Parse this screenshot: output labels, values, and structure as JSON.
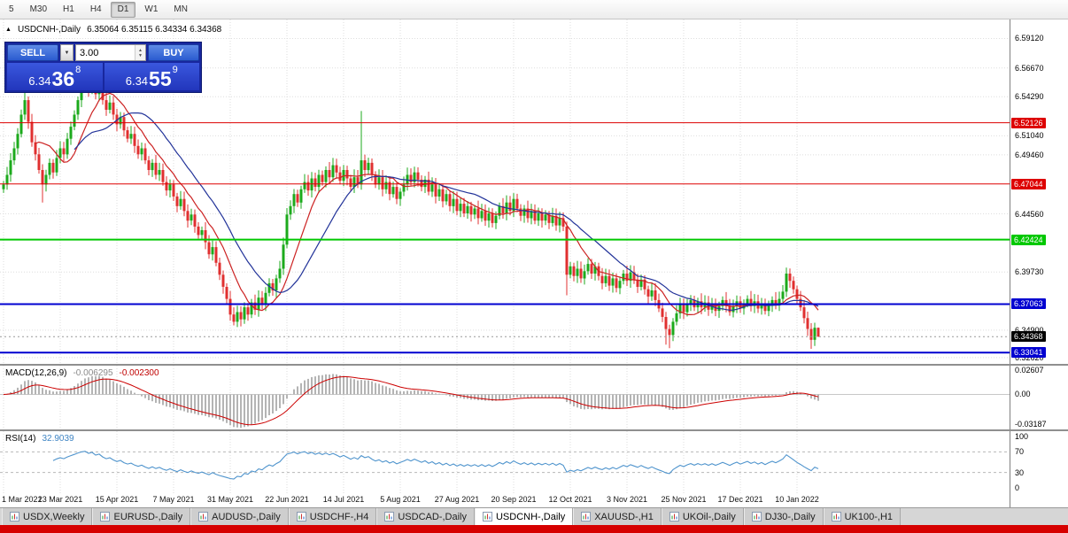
{
  "toolbar": {
    "timeframes": [
      "5",
      "M30",
      "H1",
      "H4",
      "D1",
      "W1",
      "MN"
    ],
    "active": "D1"
  },
  "icons": {
    "chart_arrow": "▲",
    "dropdown": "▼",
    "spin_up": "▲",
    "spin_down": "▼"
  },
  "chart_header": {
    "symbol_period": "USDCNH-,Daily",
    "ohlc": "6.35064 6.35115 6.34334 6.34368"
  },
  "one_click": {
    "sell_label": "SELL",
    "buy_label": "BUY",
    "volume": "3.00",
    "sell_price": {
      "base": "6.34",
      "big": "36",
      "sup": "8"
    },
    "buy_price": {
      "base": "6.34",
      "big": "55",
      "sup": "9"
    }
  },
  "indicators": {
    "macd": {
      "label": "MACD(12,26,9)",
      "value_main": "-0.006295",
      "value_signal": "-0.002300",
      "axis": [
        {
          "label": "0.02607",
          "value": 0.02607
        },
        {
          "label": "0.00",
          "value": 0
        },
        {
          "label": "-0.03187",
          "value": -0.03187
        }
      ]
    },
    "rsi": {
      "label": "RSI(14)",
      "value": "32.9039",
      "axis": [
        {
          "label": "100",
          "value": 100
        },
        {
          "label": "70",
          "value": 70
        },
        {
          "label": "30",
          "value": 30
        },
        {
          "label": "0",
          "value": 0
        }
      ]
    }
  },
  "price_axis": {
    "ticks": [
      {
        "label": "6.59120",
        "value": 6.5912
      },
      {
        "label": "6.56670",
        "value": 6.5667
      },
      {
        "label": "6.54290",
        "value": 6.5429
      },
      {
        "label": "6.51040",
        "value": 6.5104
      },
      {
        "label": "6.49460",
        "value": 6.4946
      },
      {
        "label": "6.44560",
        "value": 6.4456
      },
      {
        "label": "6.39730",
        "value": 6.3973
      },
      {
        "label": "6.34900",
        "value": 6.349
      },
      {
        "label": "6.32620",
        "value": 6.3262
      }
    ],
    "badges": [
      {
        "label": "6.52126",
        "price": 6.52126,
        "bg": "#dd0000",
        "type": "level"
      },
      {
        "label": "6.47044",
        "price": 6.47044,
        "bg": "#dd0000",
        "type": "level"
      },
      {
        "label": "6.42424",
        "price": 6.42424,
        "bg": "#00c800",
        "type": "level"
      },
      {
        "label": "6.37063",
        "price": 6.37063,
        "bg": "#0000d0",
        "type": "level"
      },
      {
        "label": "6.34368",
        "price": 6.34368,
        "bg": "#000000",
        "type": "bid"
      },
      {
        "label": "6.33041",
        "price": 6.33041,
        "bg": "#0000d0",
        "type": "level"
      }
    ]
  },
  "time_axis": {
    "labels": [
      "1 Mar 2021",
      "23 Mar 2021",
      "15 Apr 2021",
      "7 May 2021",
      "31 May 2021",
      "22 Jun 2021",
      "14 Jul 2021",
      "5 Aug 2021",
      "27 Aug 2021",
      "20 Sep 2021",
      "12 Oct 2021",
      "3 Nov 2021",
      "25 Nov 2021",
      "17 Dec 2021",
      "10 Jan 2022"
    ],
    "indices": [
      0,
      16,
      32,
      48,
      64,
      80,
      96,
      112,
      128,
      144,
      160,
      176,
      192,
      208,
      224
    ]
  },
  "tabs": [
    {
      "label": "USDX,Weekly",
      "active": false
    },
    {
      "label": "EURUSD-,Daily",
      "active": false
    },
    {
      "label": "AUDUSD-,Daily",
      "active": false
    },
    {
      "label": "USDCHF-,H4",
      "active": false
    },
    {
      "label": "USDCAD-,Daily",
      "active": false
    },
    {
      "label": "USDCNH-,Daily",
      "active": true
    },
    {
      "label": "XAUUSD-,H1",
      "active": false
    },
    {
      "label": "UKOil-,Daily",
      "active": false
    },
    {
      "label": "DJ30-,Daily",
      "active": false
    },
    {
      "label": "UK100-,H1",
      "active": false
    }
  ],
  "colors": {
    "candle_up": "#1caa1c",
    "candle_down": "#e03030",
    "macd_hist": "#b4b4b4",
    "macd_signal": "#cc0000",
    "rsi_line": "#4f94cd",
    "level_red": "#dd0000",
    "level_green": "#00c800",
    "level_blue": "#0000d0",
    "bid_line": "#999999",
    "button_blue": "#2a5bd0",
    "panel_blue": "#18279e",
    "bottom_bar_red": "#d60000"
  },
  "chart_data": {
    "type": "candlestick",
    "symbol": "USDCNH-",
    "timeframe": "Daily",
    "ylim": [
      6.321,
      6.607
    ],
    "x_range": [
      "1 Mar 2021",
      "10 Jan 2022"
    ],
    "bid": 6.34368,
    "levels": [
      {
        "price": 6.52126,
        "color": "#dd0000",
        "width": 1
      },
      {
        "price": 6.47044,
        "color": "#dd0000",
        "width": 1
      },
      {
        "price": 6.42424,
        "color": "#00c800",
        "width": 2
      },
      {
        "price": 6.37063,
        "color": "#0000d0",
        "width": 2
      },
      {
        "price": 6.33041,
        "color": "#0000d0",
        "width": 2
      }
    ],
    "ma": [
      {
        "period": 10,
        "color": "#cc2222"
      },
      {
        "period": 21,
        "color": "#223399"
      }
    ],
    "macd": {
      "fast": 12,
      "slow": 26,
      "signal": 9,
      "ylim": [
        -0.0335,
        0.0275
      ]
    },
    "rsi": {
      "period": 14,
      "levels": [
        70,
        30
      ],
      "ylim": [
        0,
        100
      ]
    },
    "closes": [
      6.47,
      6.478,
      6.49,
      6.5,
      6.512,
      6.528,
      6.54,
      6.522,
      6.505,
      6.495,
      6.482,
      6.47,
      6.478,
      6.488,
      6.48,
      6.492,
      6.5,
      6.495,
      6.508,
      6.518,
      6.528,
      6.54,
      6.55,
      6.556,
      6.548,
      6.556,
      6.545,
      6.552,
      6.54,
      6.532,
      6.538,
      6.528,
      6.52,
      6.526,
      6.515,
      6.508,
      6.512,
      6.502,
      6.495,
      6.5,
      6.49,
      6.482,
      6.488,
      6.478,
      6.482,
      6.472,
      6.465,
      6.47,
      6.46,
      6.452,
      6.458,
      6.448,
      6.44,
      6.445,
      6.435,
      6.428,
      6.432,
      6.422,
      6.412,
      6.418,
      6.405,
      6.395,
      6.385,
      6.375,
      6.362,
      6.356,
      6.364,
      6.358,
      6.368,
      6.362,
      6.372,
      6.366,
      6.376,
      6.37,
      6.38,
      6.388,
      6.382,
      6.392,
      6.4,
      6.42,
      6.445,
      6.452,
      6.462,
      6.455,
      6.466,
      6.472,
      6.465,
      6.475,
      6.468,
      6.478,
      6.472,
      6.482,
      6.476,
      6.486,
      6.48,
      6.473,
      6.482,
      6.475,
      6.468,
      6.476,
      6.47,
      6.49,
      6.482,
      6.488,
      6.478,
      6.47,
      6.476,
      6.466,
      6.472,
      6.462,
      6.468,
      6.458,
      6.464,
      6.47,
      6.478,
      6.472,
      6.48,
      6.474,
      6.468,
      6.474,
      6.464,
      6.47,
      6.46,
      6.466,
      6.456,
      6.462,
      6.452,
      6.458,
      6.448,
      6.454,
      6.446,
      6.452,
      6.445,
      6.45,
      6.442,
      6.448,
      6.44,
      6.446,
      6.438,
      6.444,
      6.452,
      6.446,
      6.455,
      6.448,
      6.458,
      6.45,
      6.444,
      6.45,
      6.442,
      6.448,
      6.44,
      6.446,
      6.44,
      6.445,
      6.438,
      6.444,
      6.436,
      6.442,
      6.435,
      6.395,
      6.402,
      6.394,
      6.4,
      6.392,
      6.398,
      6.404,
      6.396,
      6.402,
      6.394,
      6.388,
      6.394,
      6.386,
      6.392,
      6.384,
      6.39,
      6.396,
      6.39,
      6.397,
      6.391,
      6.385,
      6.391,
      6.383,
      6.377,
      6.382,
      6.374,
      6.367,
      6.36,
      6.35,
      6.345,
      6.356,
      6.363,
      6.37,
      6.364,
      6.37,
      6.374,
      6.368,
      6.373,
      6.368,
      6.372,
      6.366,
      6.371,
      6.365,
      6.369,
      6.374,
      6.369,
      6.364,
      6.369,
      6.373,
      6.367,
      6.371,
      6.375,
      6.369,
      6.373,
      6.367,
      6.371,
      6.365,
      6.37,
      6.374,
      6.37,
      6.375,
      6.381,
      6.396,
      6.39,
      6.383,
      6.375,
      6.368,
      6.359,
      6.35,
      6.341,
      6.351,
      6.3437
    ],
    "wick_overrides": {
      "6": {
        "h": 6.558
      },
      "11": {
        "l": 6.455
      },
      "23": {
        "h": 6.571
      },
      "25": {
        "h": 6.578
      },
      "101": {
        "h": 6.531
      },
      "159": {
        "l": 6.378
      },
      "187": {
        "l": 6.337
      },
      "188": {
        "l": 6.334
      },
      "221": {
        "h": 6.401
      },
      "228": {
        "l": 6.3335
      },
      "230": {
        "h": 6.3512,
        "l": 6.3433
      }
    }
  }
}
